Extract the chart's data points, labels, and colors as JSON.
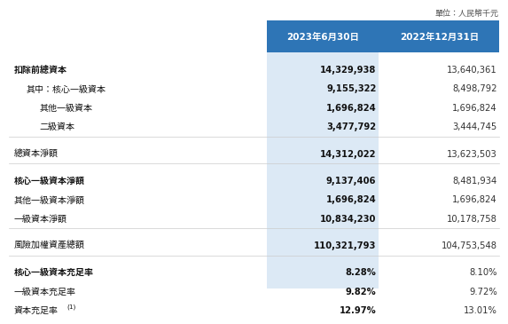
{
  "unit_label": "單位：人民幣千元",
  "col1_header": "2023年6月30日",
  "col2_header": "2022年12月31日",
  "rows": [
    {
      "label": "扣除前總資本",
      "indent": 0,
      "bold": true,
      "v1": "14,329,938",
      "v2": "13,640,361",
      "v1_bold": true,
      "v2_bold": false,
      "top_gap": true
    },
    {
      "label": "其中：核心一級資本",
      "indent": 1,
      "bold": false,
      "v1": "9,155,322",
      "v2": "8,498,792",
      "v1_bold": true,
      "v2_bold": false,
      "top_gap": false
    },
    {
      "label": "其他一級資本",
      "indent": 2,
      "bold": false,
      "v1": "1,696,824",
      "v2": "1,696,824",
      "v1_bold": true,
      "v2_bold": false,
      "top_gap": false
    },
    {
      "label": "二級資本",
      "indent": 2,
      "bold": false,
      "v1": "3,477,792",
      "v2": "3,444,745",
      "v1_bold": true,
      "v2_bold": false,
      "top_gap": false
    },
    {
      "label": "總資本淨額",
      "indent": 0,
      "bold": false,
      "v1": "14,312,022",
      "v2": "13,623,503",
      "v1_bold": true,
      "v2_bold": false,
      "top_gap": true
    },
    {
      "label": "核心一級資本淨額",
      "indent": 0,
      "bold": true,
      "v1": "9,137,406",
      "v2": "8,481,934",
      "v1_bold": true,
      "v2_bold": false,
      "top_gap": true
    },
    {
      "label": "其他一級資本淨額",
      "indent": 0,
      "bold": false,
      "v1": "1,696,824",
      "v2": "1,696,824",
      "v1_bold": true,
      "v2_bold": false,
      "top_gap": false
    },
    {
      "label": "一級資本淨額",
      "indent": 0,
      "bold": false,
      "v1": "10,834,230",
      "v2": "10,178,758",
      "v1_bold": true,
      "v2_bold": false,
      "top_gap": false
    },
    {
      "label": "風險加權資產總額",
      "indent": 0,
      "bold": false,
      "v1": "110,321,793",
      "v2": "104,753,548",
      "v1_bold": true,
      "v2_bold": false,
      "top_gap": true
    },
    {
      "label": "核心一級資本充足率",
      "indent": 0,
      "bold": true,
      "v1": "8.28%",
      "v2": "8.10%",
      "v1_bold": true,
      "v2_bold": false,
      "top_gap": true
    },
    {
      "label": "一級資本充足率",
      "indent": 0,
      "bold": false,
      "v1": "9.82%",
      "v2": "9.72%",
      "v1_bold": true,
      "v2_bold": false,
      "top_gap": false
    },
    {
      "label": "資本充足率(1)",
      "indent": 0,
      "bold": false,
      "v1": "12.97%",
      "v2": "13.01%",
      "v1_bold": true,
      "v2_bold": false,
      "top_gap": false
    }
  ],
  "header_bg": "#2E75B6",
  "header_fg": "#FFFFFF",
  "col1_bg": "#DCE9F5",
  "col2_bg": "#FFFFFF",
  "table_bg": "#FFFFFF"
}
